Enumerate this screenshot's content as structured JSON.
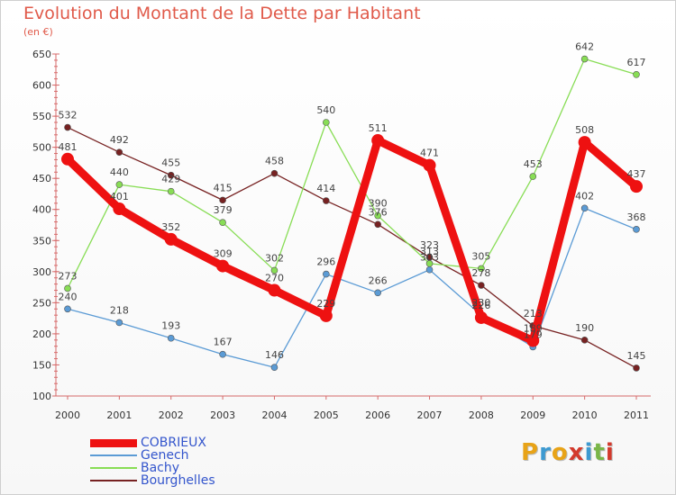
{
  "header": {
    "title": "Evolution du Montant de la Dette par Habitant",
    "unit": "(en €)"
  },
  "logo": {
    "text": "Proxiti",
    "letter_colors": [
      "#e8a317",
      "#3d9ad1",
      "#e8a317",
      "#d33a2c",
      "#3d9ad1",
      "#7ab648",
      "#d33a2c"
    ]
  },
  "chart_data": {
    "type": "line",
    "title": "Evolution du Montant de la Dette par Habitant",
    "subtitle": "(en €)",
    "xlabel": "",
    "ylabel": "",
    "categories": [
      "2000",
      "2001",
      "2002",
      "2003",
      "2004",
      "2005",
      "2006",
      "2007",
      "2008",
      "2009",
      "2010",
      "2011"
    ],
    "ylim": [
      100,
      650
    ],
    "yticks": [
      100,
      150,
      200,
      250,
      300,
      350,
      400,
      450,
      500,
      550,
      600,
      650
    ],
    "grid": false,
    "legend_position": "bottom-left",
    "series": [
      {
        "name": "COBRIEUX",
        "color": "#ee1111",
        "values": [
          481,
          401,
          352,
          309,
          270,
          229,
          511,
          471,
          226,
          189,
          508,
          437
        ]
      },
      {
        "name": "Genech",
        "color": "#5b9bd5",
        "values": [
          240,
          218,
          193,
          167,
          146,
          296,
          266,
          303,
          230,
          179,
          402,
          368
        ]
      },
      {
        "name": "Bachy",
        "color": "#88dd55",
        "values": [
          273,
          440,
          429,
          379,
          302,
          540,
          390,
          313,
          305,
          453,
          642,
          617
        ]
      },
      {
        "name": "Bourghelles",
        "color": "#772222",
        "values": [
          532,
          492,
          455,
          415,
          458,
          414,
          376,
          323,
          278,
          213,
          190,
          145
        ]
      }
    ]
  }
}
